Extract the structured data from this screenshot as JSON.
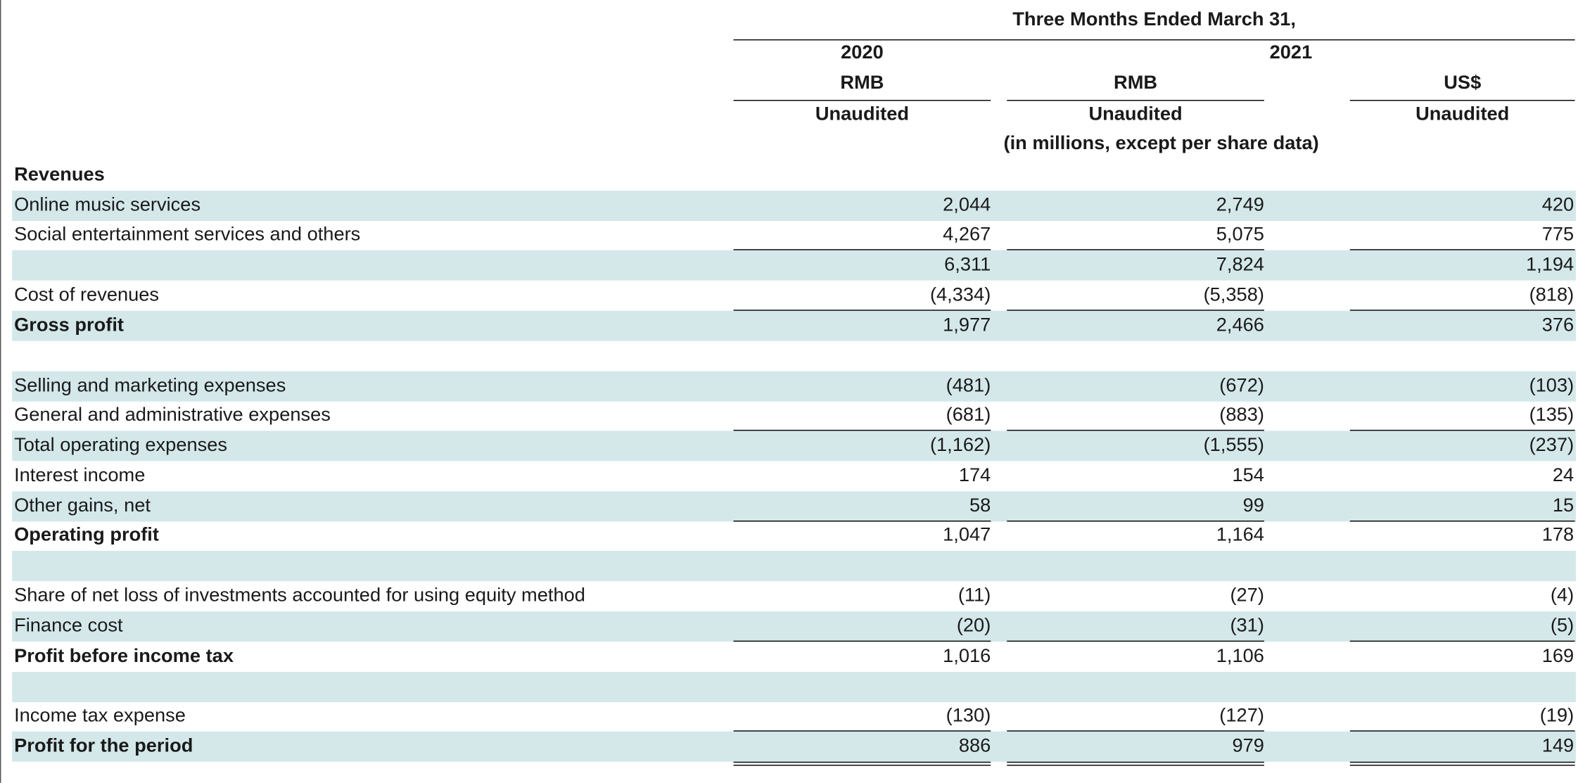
{
  "header": {
    "period": "Three Months Ended March 31,",
    "year_2020": "2020",
    "year_2021": "2021",
    "col1_currency": "RMB",
    "col2_currency": "RMB",
    "col3_currency": "US$",
    "col1_status": "Unaudited",
    "col2_status": "Unaudited",
    "col3_status": "Unaudited",
    "units_note": "(in millions, except per share data)"
  },
  "rows": [
    {
      "label": "Revenues",
      "v2020_rmb": "",
      "v2021_rmb": "",
      "v2021_usd": ""
    },
    {
      "label": "Online music services",
      "v2020_rmb": "2,044",
      "v2021_rmb": "2,749",
      "v2021_usd": "420"
    },
    {
      "label": "Social entertainment services and others",
      "v2020_rmb": "4,267",
      "v2021_rmb": "5,075",
      "v2021_usd": "775"
    },
    {
      "label": "",
      "v2020_rmb": "6,311",
      "v2021_rmb": "7,824",
      "v2021_usd": "1,194"
    },
    {
      "label": "Cost of revenues",
      "v2020_rmb": "(4,334)",
      "v2021_rmb": "(5,358)",
      "v2021_usd": "(818)"
    },
    {
      "label": "Gross profit",
      "v2020_rmb": "1,977",
      "v2021_rmb": "2,466",
      "v2021_usd": "376"
    },
    {
      "label": "",
      "v2020_rmb": "",
      "v2021_rmb": "",
      "v2021_usd": ""
    },
    {
      "label": "Selling and marketing expenses",
      "v2020_rmb": "(481)",
      "v2021_rmb": "(672)",
      "v2021_usd": "(103)"
    },
    {
      "label": "General and administrative expenses",
      "v2020_rmb": "(681)",
      "v2021_rmb": "(883)",
      "v2021_usd": "(135)"
    },
    {
      "label": "Total operating expenses",
      "v2020_rmb": "(1,162)",
      "v2021_rmb": "(1,555)",
      "v2021_usd": "(237)"
    },
    {
      "label": "Interest income",
      "v2020_rmb": "174",
      "v2021_rmb": "154",
      "v2021_usd": "24"
    },
    {
      "label": "Other gains, net",
      "v2020_rmb": "58",
      "v2021_rmb": "99",
      "v2021_usd": "15"
    },
    {
      "label": "Operating profit",
      "v2020_rmb": "1,047",
      "v2021_rmb": "1,164",
      "v2021_usd": "178"
    },
    {
      "label": "",
      "v2020_rmb": "",
      "v2021_rmb": "",
      "v2021_usd": ""
    },
    {
      "label": "Share of net loss of investments accounted for using equity method",
      "v2020_rmb": "(11)",
      "v2021_rmb": "(27)",
      "v2021_usd": "(4)"
    },
    {
      "label": "Finance cost",
      "v2020_rmb": "(20)",
      "v2021_rmb": "(31)",
      "v2021_usd": "(5)"
    },
    {
      "label": "Profit before income tax",
      "v2020_rmb": "1,016",
      "v2021_rmb": "1,106",
      "v2021_usd": "169"
    },
    {
      "label": "",
      "v2020_rmb": "",
      "v2021_rmb": "",
      "v2021_usd": ""
    },
    {
      "label": "Income tax expense",
      "v2020_rmb": "(130)",
      "v2021_rmb": "(127)",
      "v2021_usd": "(19)"
    },
    {
      "label": "Profit for the period",
      "v2020_rmb": "886",
      "v2021_rmb": "979",
      "v2021_usd": "149"
    }
  ]
}
